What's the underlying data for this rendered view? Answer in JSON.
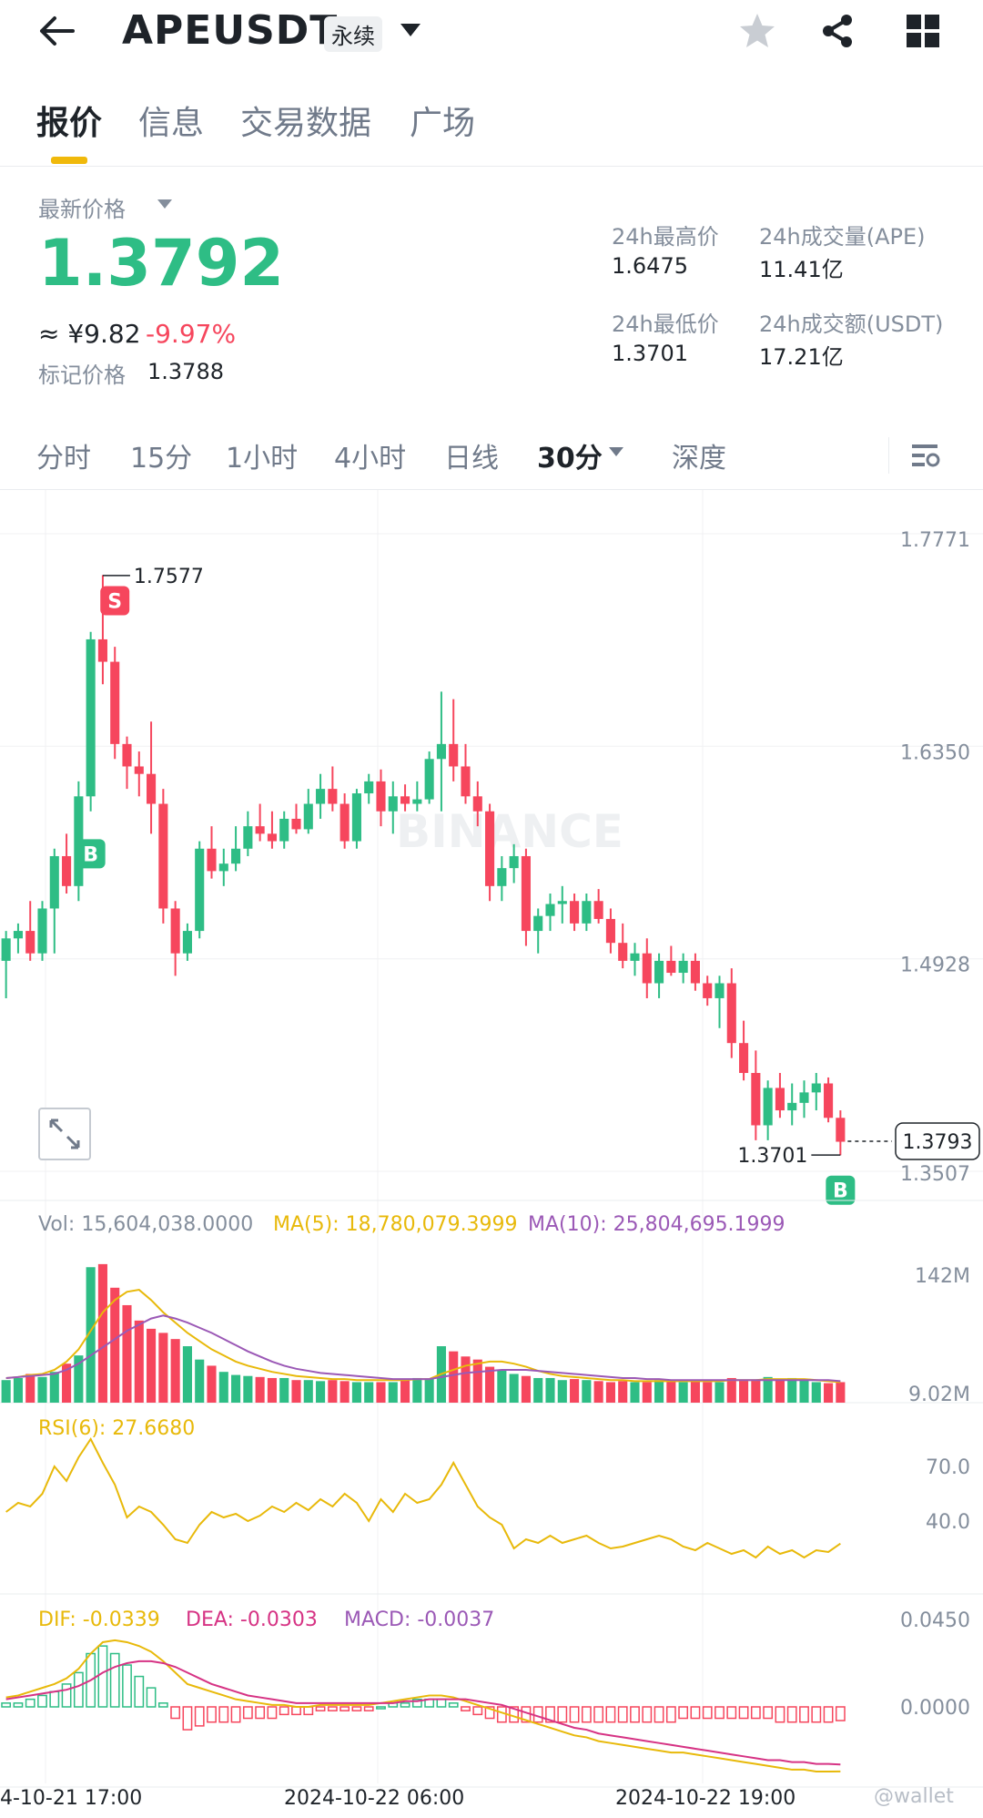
{
  "header": {
    "symbol": "APEUSDT",
    "contract_badge": "永续",
    "icons": [
      "back-arrow-icon",
      "dropdown-icon",
      "star-icon",
      "share-icon",
      "grid-icon"
    ]
  },
  "tabs": [
    {
      "label": "报价",
      "active": true
    },
    {
      "label": "信息",
      "active": false
    },
    {
      "label": "交易数据",
      "active": false
    },
    {
      "label": "广场",
      "active": false
    }
  ],
  "price": {
    "latest_label": "最新价格",
    "latest": "1.3792",
    "cny": "≈ ¥9.82",
    "change": "-9.97%",
    "mark_label": "标记价格",
    "mark": "1.3788"
  },
  "stats": {
    "high_label": "24h最高价",
    "high": "1.6475",
    "low_label": "24h最低价",
    "low": "1.3701",
    "vol_ape_label": "24h成交量(APE)",
    "vol_ape": "11.41亿",
    "vol_usdt_label": "24h成交额(USDT)",
    "vol_usdt": "17.21亿"
  },
  "timeframes": [
    {
      "label": "分时",
      "active": false
    },
    {
      "label": "15分",
      "active": false
    },
    {
      "label": "1小时",
      "active": false
    },
    {
      "label": "4小时",
      "active": false
    },
    {
      "label": "日线",
      "active": false
    },
    {
      "label": "30分",
      "active": true
    },
    {
      "label": "深度",
      "active": false
    }
  ],
  "colors": {
    "up": "#2ebd85",
    "down": "#f6465d",
    "yellow": "#e8b90a",
    "purple": "#9b59b6",
    "gray": "#848e9c"
  },
  "chart_data": {
    "type": "candlestick",
    "y_ticks": [
      "1.7771",
      "1.6350",
      "1.4928",
      "1.3507"
    ],
    "ylim": [
      1.3507,
      1.7771
    ],
    "high_marker": "1.7577",
    "low_marker": "1.3701",
    "current_price": "1.3793",
    "watermark": "BINANCE",
    "trade_markers": [
      "S",
      "B",
      "B"
    ],
    "x_labels": [
      "4-10-21 17:00",
      "2024-10-22 06:00",
      "2024-10-22 19:00"
    ],
    "candles": [
      {
        "o": 1.5,
        "h": 1.52,
        "l": 1.475,
        "c": 1.515
      },
      {
        "o": 1.515,
        "h": 1.525,
        "l": 1.505,
        "c": 1.52
      },
      {
        "o": 1.52,
        "h": 1.54,
        "l": 1.5,
        "c": 1.505
      },
      {
        "o": 1.505,
        "h": 1.54,
        "l": 1.5,
        "c": 1.535
      },
      {
        "o": 1.535,
        "h": 1.575,
        "l": 1.505,
        "c": 1.57
      },
      {
        "o": 1.57,
        "h": 1.585,
        "l": 1.545,
        "c": 1.55
      },
      {
        "o": 1.55,
        "h": 1.62,
        "l": 1.54,
        "c": 1.61
      },
      {
        "o": 1.61,
        "h": 1.72,
        "l": 1.6,
        "c": 1.715
      },
      {
        "o": 1.715,
        "h": 1.758,
        "l": 1.685,
        "c": 1.7
      },
      {
        "o": 1.7,
        "h": 1.71,
        "l": 1.635,
        "c": 1.645
      },
      {
        "o": 1.645,
        "h": 1.65,
        "l": 1.615,
        "c": 1.63
      },
      {
        "o": 1.63,
        "h": 1.64,
        "l": 1.61,
        "c": 1.625
      },
      {
        "o": 1.625,
        "h": 1.66,
        "l": 1.585,
        "c": 1.605
      },
      {
        "o": 1.605,
        "h": 1.615,
        "l": 1.525,
        "c": 1.535
      },
      {
        "o": 1.535,
        "h": 1.54,
        "l": 1.49,
        "c": 1.505
      },
      {
        "o": 1.505,
        "h": 1.525,
        "l": 1.5,
        "c": 1.52
      },
      {
        "o": 1.52,
        "h": 1.58,
        "l": 1.515,
        "c": 1.575
      },
      {
        "o": 1.575,
        "h": 1.59,
        "l": 1.555,
        "c": 1.56
      },
      {
        "o": 1.56,
        "h": 1.575,
        "l": 1.55,
        "c": 1.565
      },
      {
        "o": 1.565,
        "h": 1.59,
        "l": 1.56,
        "c": 1.575
      },
      {
        "o": 1.575,
        "h": 1.6,
        "l": 1.57,
        "c": 1.59
      },
      {
        "o": 1.59,
        "h": 1.605,
        "l": 1.58,
        "c": 1.585
      },
      {
        "o": 1.585,
        "h": 1.6,
        "l": 1.575,
        "c": 1.58
      },
      {
        "o": 1.58,
        "h": 1.6,
        "l": 1.575,
        "c": 1.595
      },
      {
        "o": 1.595,
        "h": 1.605,
        "l": 1.585,
        "c": 1.588
      },
      {
        "o": 1.588,
        "h": 1.615,
        "l": 1.585,
        "c": 1.605
      },
      {
        "o": 1.605,
        "h": 1.625,
        "l": 1.595,
        "c": 1.615
      },
      {
        "o": 1.615,
        "h": 1.63,
        "l": 1.6,
        "c": 1.605
      },
      {
        "o": 1.605,
        "h": 1.612,
        "l": 1.575,
        "c": 1.58
      },
      {
        "o": 1.58,
        "h": 1.615,
        "l": 1.575,
        "c": 1.612
      },
      {
        "o": 1.612,
        "h": 1.625,
        "l": 1.605,
        "c": 1.62
      },
      {
        "o": 1.62,
        "h": 1.628,
        "l": 1.59,
        "c": 1.6
      },
      {
        "o": 1.6,
        "h": 1.62,
        "l": 1.585,
        "c": 1.61
      },
      {
        "o": 1.61,
        "h": 1.618,
        "l": 1.6,
        "c": 1.605
      },
      {
        "o": 1.605,
        "h": 1.62,
        "l": 1.6,
        "c": 1.608
      },
      {
        "o": 1.608,
        "h": 1.64,
        "l": 1.605,
        "c": 1.635
      },
      {
        "o": 1.635,
        "h": 1.68,
        "l": 1.6,
        "c": 1.645
      },
      {
        "o": 1.645,
        "h": 1.675,
        "l": 1.62,
        "c": 1.63
      },
      {
        "o": 1.63,
        "h": 1.645,
        "l": 1.605,
        "c": 1.61
      },
      {
        "o": 1.61,
        "h": 1.62,
        "l": 1.59,
        "c": 1.6
      },
      {
        "o": 1.6,
        "h": 1.605,
        "l": 1.54,
        "c": 1.55
      },
      {
        "o": 1.55,
        "h": 1.57,
        "l": 1.54,
        "c": 1.562
      },
      {
        "o": 1.562,
        "h": 1.578,
        "l": 1.552,
        "c": 1.57
      },
      {
        "o": 1.57,
        "h": 1.575,
        "l": 1.51,
        "c": 1.52
      },
      {
        "o": 1.52,
        "h": 1.535,
        "l": 1.505,
        "c": 1.53
      },
      {
        "o": 1.53,
        "h": 1.545,
        "l": 1.52,
        "c": 1.538
      },
      {
        "o": 1.538,
        "h": 1.55,
        "l": 1.525,
        "c": 1.54
      },
      {
        "o": 1.54,
        "h": 1.545,
        "l": 1.52,
        "c": 1.525
      },
      {
        "o": 1.525,
        "h": 1.545,
        "l": 1.52,
        "c": 1.54
      },
      {
        "o": 1.54,
        "h": 1.548,
        "l": 1.525,
        "c": 1.528
      },
      {
        "o": 1.528,
        "h": 1.535,
        "l": 1.505,
        "c": 1.512
      },
      {
        "o": 1.512,
        "h": 1.525,
        "l": 1.495,
        "c": 1.5
      },
      {
        "o": 1.5,
        "h": 1.512,
        "l": 1.49,
        "c": 1.505
      },
      {
        "o": 1.505,
        "h": 1.515,
        "l": 1.475,
        "c": 1.485
      },
      {
        "o": 1.485,
        "h": 1.505,
        "l": 1.475,
        "c": 1.5
      },
      {
        "o": 1.5,
        "h": 1.51,
        "l": 1.49,
        "c": 1.492
      },
      {
        "o": 1.492,
        "h": 1.505,
        "l": 1.485,
        "c": 1.5
      },
      {
        "o": 1.5,
        "h": 1.505,
        "l": 1.48,
        "c": 1.485
      },
      {
        "o": 1.485,
        "h": 1.49,
        "l": 1.47,
        "c": 1.475
      },
      {
        "o": 1.475,
        "h": 1.49,
        "l": 1.455,
        "c": 1.485
      },
      {
        "o": 1.485,
        "h": 1.495,
        "l": 1.435,
        "c": 1.445
      },
      {
        "o": 1.445,
        "h": 1.46,
        "l": 1.42,
        "c": 1.425
      },
      {
        "o": 1.425,
        "h": 1.44,
        "l": 1.38,
        "c": 1.39
      },
      {
        "o": 1.39,
        "h": 1.42,
        "l": 1.38,
        "c": 1.415
      },
      {
        "o": 1.415,
        "h": 1.425,
        "l": 1.395,
        "c": 1.4
      },
      {
        "o": 1.4,
        "h": 1.418,
        "l": 1.39,
        "c": 1.405
      },
      {
        "o": 1.405,
        "h": 1.42,
        "l": 1.395,
        "c": 1.412
      },
      {
        "o": 1.412,
        "h": 1.425,
        "l": 1.4,
        "c": 1.418
      },
      {
        "o": 1.418,
        "h": 1.422,
        "l": 1.392,
        "c": 1.395
      },
      {
        "o": 1.395,
        "h": 1.4,
        "l": 1.37,
        "c": 1.379
      }
    ]
  },
  "volume": {
    "vol_label": "Vol: 15,604,038.0000",
    "ma5_label": "MA(5): 18,780,079.3999",
    "ma10_label": "MA(10): 25,804,695.1999",
    "y_ticks": [
      "142M",
      "9.02M"
    ],
    "values": [
      22,
      24,
      28,
      25,
      30,
      38,
      46,
      132,
      135,
      112,
      95,
      80,
      72,
      68,
      62,
      55,
      42,
      36,
      30,
      27,
      26,
      25,
      24,
      24,
      22,
      22,
      21,
      22,
      21,
      20,
      20,
      20,
      20,
      22,
      24,
      23,
      55,
      50,
      45,
      42,
      35,
      32,
      28,
      26,
      24,
      24,
      22,
      23,
      22,
      21,
      20,
      21,
      20,
      20,
      22,
      21,
      20,
      21,
      20,
      20,
      24,
      22,
      22,
      25,
      22,
      24,
      22,
      20,
      19,
      20
    ],
    "ma5": [
      24,
      25,
      27,
      28,
      32,
      40,
      52,
      70,
      88,
      100,
      108,
      110,
      100,
      88,
      78,
      68,
      60,
      52,
      46,
      40,
      36,
      33,
      30,
      28,
      26,
      25,
      24,
      23,
      23,
      22,
      22,
      22,
      22,
      22,
      23,
      23,
      28,
      32,
      36,
      38,
      40,
      40,
      38,
      35,
      31,
      28,
      26,
      25,
      24,
      23,
      22,
      22,
      21,
      21,
      21,
      21,
      21,
      21,
      21,
      21,
      22,
      22,
      22,
      23,
      23,
      23,
      23,
      22,
      21,
      20
    ],
    "ma10": [
      24,
      25,
      26,
      27,
      28,
      32,
      38,
      46,
      54,
      62,
      70,
      76,
      82,
      85,
      82,
      78,
      73,
      68,
      62,
      56,
      50,
      45,
      40,
      36,
      33,
      31,
      29,
      28,
      27,
      26,
      25,
      24,
      23,
      23,
      23,
      23,
      25,
      27,
      29,
      30,
      31,
      32,
      32,
      32,
      31,
      30,
      29,
      28,
      27,
      26,
      25,
      24,
      24,
      23,
      23,
      22,
      22,
      22,
      22,
      22,
      22,
      22,
      22,
      22,
      22,
      22,
      22,
      22,
      22,
      21
    ]
  },
  "rsi": {
    "label": "RSI(6): 27.6680",
    "y_ticks": [
      "70.0",
      "40.0"
    ],
    "values": [
      45,
      50,
      48,
      55,
      70,
      62,
      75,
      85,
      72,
      60,
      42,
      48,
      45,
      38,
      30,
      28,
      38,
      45,
      42,
      44,
      40,
      43,
      48,
      45,
      50,
      46,
      52,
      48,
      55,
      50,
      40,
      52,
      45,
      55,
      50,
      52,
      60,
      72,
      60,
      48,
      42,
      38,
      25,
      30,
      28,
      32,
      28,
      30,
      32,
      28,
      25,
      26,
      28,
      30,
      32,
      30,
      26,
      24,
      28,
      25,
      22,
      24,
      20,
      26,
      22,
      24,
      20,
      24,
      23,
      27.668
    ]
  },
  "macd": {
    "dif_label": "DIF: -0.0339",
    "dea_label": "DEA: -0.0303",
    "macd_label": "MACD: -0.0037",
    "y_ticks": [
      "0.0450",
      "0.0000"
    ],
    "dif": [
      0.005,
      0.006,
      0.008,
      0.01,
      0.012,
      0.015,
      0.02,
      0.028,
      0.034,
      0.035,
      0.034,
      0.032,
      0.029,
      0.024,
      0.018,
      0.012,
      0.01,
      0.008,
      0.006,
      0.004,
      0.003,
      0.002,
      0.001,
      0.001,
      0.0,
      0.0,
      0.001,
      0.001,
      0.001,
      0.001,
      0.001,
      0.002,
      0.003,
      0.004,
      0.005,
      0.006,
      0.006,
      0.005,
      0.003,
      0.001,
      -0.001,
      -0.003,
      -0.005,
      -0.007,
      -0.009,
      -0.011,
      -0.013,
      -0.015,
      -0.016,
      -0.018,
      -0.019,
      -0.02,
      -0.021,
      -0.022,
      -0.023,
      -0.024,
      -0.024,
      -0.025,
      -0.026,
      -0.027,
      -0.028,
      -0.029,
      -0.03,
      -0.031,
      -0.032,
      -0.033,
      -0.033,
      -0.034,
      -0.034,
      -0.0339
    ],
    "dea": [
      0.004,
      0.005,
      0.006,
      0.007,
      0.008,
      0.009,
      0.011,
      0.014,
      0.018,
      0.021,
      0.023,
      0.024,
      0.024,
      0.023,
      0.021,
      0.018,
      0.015,
      0.012,
      0.01,
      0.008,
      0.006,
      0.005,
      0.004,
      0.003,
      0.002,
      0.002,
      0.002,
      0.002,
      0.002,
      0.002,
      0.002,
      0.002,
      0.002,
      0.003,
      0.003,
      0.004,
      0.004,
      0.004,
      0.004,
      0.003,
      0.002,
      0.001,
      -0.001,
      -0.003,
      -0.005,
      -0.007,
      -0.009,
      -0.011,
      -0.012,
      -0.014,
      -0.015,
      -0.016,
      -0.017,
      -0.018,
      -0.019,
      -0.02,
      -0.021,
      -0.022,
      -0.023,
      -0.024,
      -0.025,
      -0.026,
      -0.027,
      -0.028,
      -0.028,
      -0.029,
      -0.029,
      -0.03,
      -0.03,
      -0.0303
    ]
  },
  "watermark_user": "@wallet"
}
